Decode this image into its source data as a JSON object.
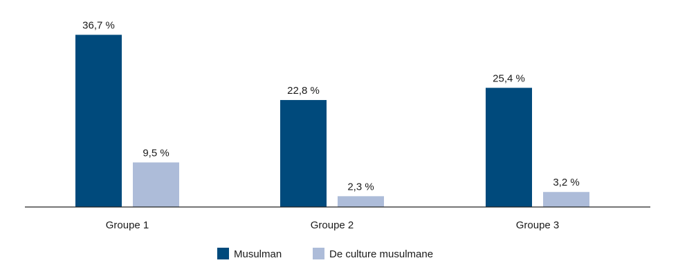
{
  "chart_data": {
    "type": "bar",
    "categories": [
      "Groupe 1",
      "Groupe 2",
      "Groupe 3"
    ],
    "series": [
      {
        "name": "Musulman",
        "values": [
          36.7,
          22.8,
          25.4
        ],
        "labels": [
          "36,7 %",
          "22,8 %",
          "25,4 %"
        ],
        "color": "#004a7c"
      },
      {
        "name": "De culture musulmane",
        "values": [
          9.5,
          2.3,
          3.2
        ],
        "labels": [
          "9,5 %",
          "2,3 %",
          "3,2 %"
        ],
        "color": "#adbcd9"
      }
    ],
    "ylim": [
      0,
      40
    ],
    "grid": false,
    "legend_position": "bottom-center"
  }
}
